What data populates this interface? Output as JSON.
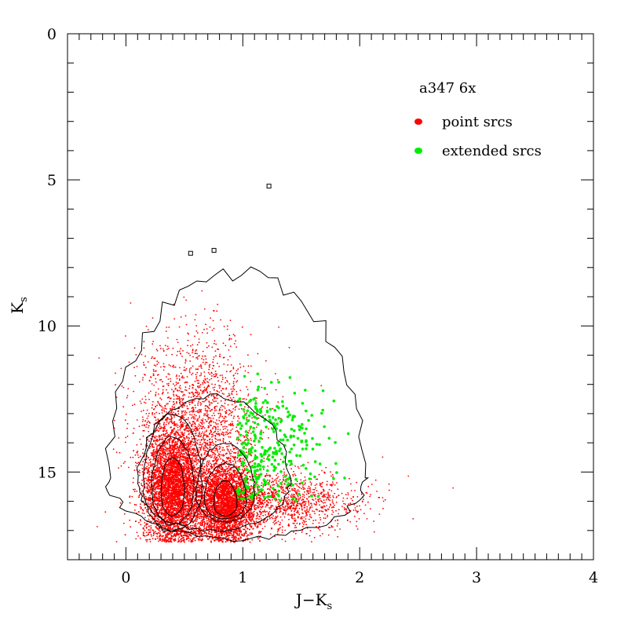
{
  "chart_data": {
    "type": "scatter",
    "title": "",
    "xlabel": "J−K",
    "xlabel_sub": "s",
    "ylabel": "K",
    "ylabel_sub": "s",
    "xlim": [
      -0.5,
      4.0
    ],
    "ylim": [
      18.0,
      0.0
    ],
    "y_inverted": true,
    "x_ticks": [
      "0",
      "1",
      "2",
      "3",
      "4"
    ],
    "x_tick_values": [
      0,
      1,
      2,
      3,
      4
    ],
    "y_ticks": [
      "0",
      "5",
      "10",
      "15"
    ],
    "y_tick_values": [
      0,
      5,
      10,
      15
    ],
    "grid": false,
    "legend": {
      "placement": "top-right",
      "title": "a347 6x",
      "entries": [
        {
          "label": "point srcs",
          "color": "#ff0000"
        },
        {
          "label": "extended srcs",
          "color": "#00ee00"
        }
      ]
    },
    "series": [
      {
        "name": "point srcs",
        "color": "#ff0000",
        "distribution": {
          "approx_count": 14000,
          "clumps": [
            {
              "x_center": 0.4,
              "y_center": 15.6,
              "x_spread": 0.12,
              "y_spread": 1.0,
              "weight": 0.35
            },
            {
              "x_center": 0.85,
              "y_center": 16.1,
              "x_spread": 0.12,
              "y_spread": 0.7,
              "weight": 0.4
            },
            {
              "x_center": 0.6,
              "y_center": 13.5,
              "x_spread": 0.25,
              "y_spread": 1.6,
              "weight": 0.15
            },
            {
              "x_center": 1.3,
              "y_center": 16.0,
              "x_spread": 0.35,
              "y_spread": 0.5,
              "weight": 0.1
            }
          ]
        }
      },
      {
        "name": "extended srcs",
        "color": "#00ee00",
        "distribution": {
          "approx_count": 320,
          "clumps": [
            {
              "x_center": 1.2,
              "y_center": 14.3,
              "x_spread": 0.25,
              "y_spread": 1.1,
              "weight": 1.0
            }
          ]
        }
      }
    ],
    "contours": {
      "color": "#000000",
      "levels": 8,
      "outer_range": {
        "x": [
          -0.1,
          2.1
        ],
        "y": [
          8.2,
          17.3
        ]
      },
      "peaks": [
        {
          "x": 0.4,
          "y": 15.6
        },
        {
          "x": 0.85,
          "y": 16.1
        }
      ],
      "isolated_points": [
        {
          "x": 1.22,
          "y": 5.2
        },
        {
          "x": 0.55,
          "y": 7.5
        },
        {
          "x": 0.75,
          "y": 7.4
        }
      ]
    }
  }
}
